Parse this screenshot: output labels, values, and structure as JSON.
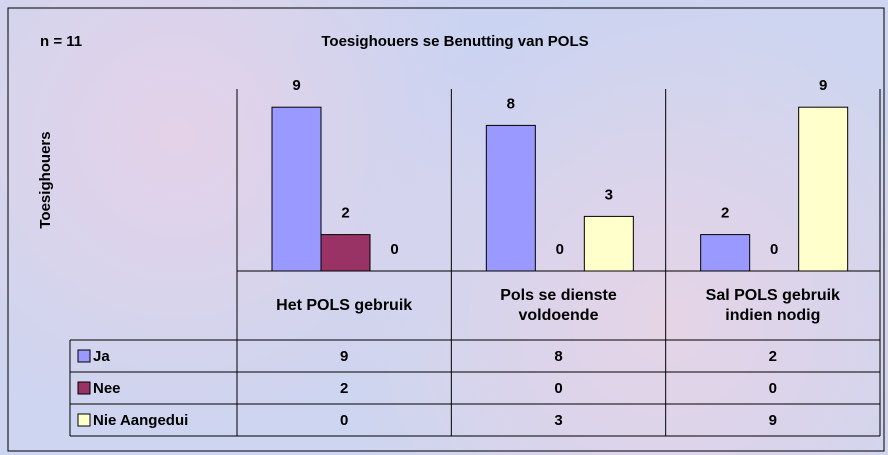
{
  "chart_data": {
    "type": "bar",
    "title": "Toesighouers se Benutting van POLS",
    "subtitle": "n = 11",
    "y_label": "Toesighouers",
    "categories": [
      "Het POLS gebruik",
      "Pols se dienste voldoende",
      "Sal POLS gebruik indien nodig"
    ],
    "series": [
      {
        "name": "Ja",
        "color": "#9999ff",
        "values": [
          9,
          8,
          2
        ]
      },
      {
        "name": "Nee",
        "color": "#993366",
        "values": [
          2,
          0,
          0
        ]
      },
      {
        "name": "Nie Aangedui",
        "color": "#ffffcc",
        "values": [
          0,
          3,
          9
        ]
      }
    ],
    "ylim": [
      0,
      10
    ]
  }
}
